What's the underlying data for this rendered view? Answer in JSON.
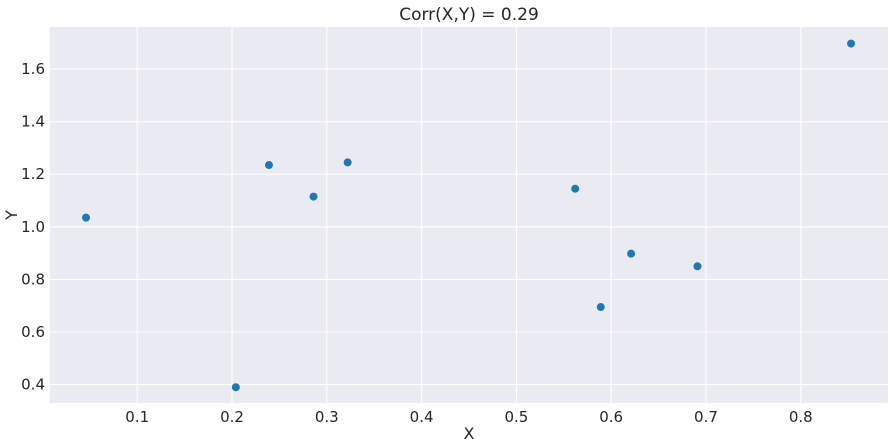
{
  "chart_data": {
    "type": "scatter",
    "title": "Corr(X,Y) = 0.29",
    "xlabel": "X",
    "ylabel": "Y",
    "xlim": [
      0.008,
      0.892
    ],
    "ylim": [
      0.33,
      1.76
    ],
    "xticks": [
      0.1,
      0.2,
      0.3,
      0.4,
      0.5,
      0.6,
      0.7,
      0.8
    ],
    "xtick_labels": [
      "0.1",
      "0.2",
      "0.3",
      "0.4",
      "0.5",
      "0.6",
      "0.7",
      "0.8"
    ],
    "yticks": [
      0.4,
      0.6,
      0.8,
      1.0,
      1.2,
      1.4,
      1.6
    ],
    "ytick_labels": [
      "0.4",
      "0.6",
      "0.8",
      "1.0",
      "1.2",
      "1.4",
      "1.6"
    ],
    "grid": true,
    "background": "#eaeaf2",
    "point_color": "#1f77b4",
    "points": [
      {
        "x": 0.046,
        "y": 1.035
      },
      {
        "x": 0.204,
        "y": 0.39
      },
      {
        "x": 0.239,
        "y": 1.235
      },
      {
        "x": 0.286,
        "y": 1.115
      },
      {
        "x": 0.322,
        "y": 1.245
      },
      {
        "x": 0.562,
        "y": 1.145
      },
      {
        "x": 0.589,
        "y": 0.695
      },
      {
        "x": 0.621,
        "y": 0.898
      },
      {
        "x": 0.691,
        "y": 0.85
      },
      {
        "x": 0.853,
        "y": 1.697
      }
    ]
  }
}
